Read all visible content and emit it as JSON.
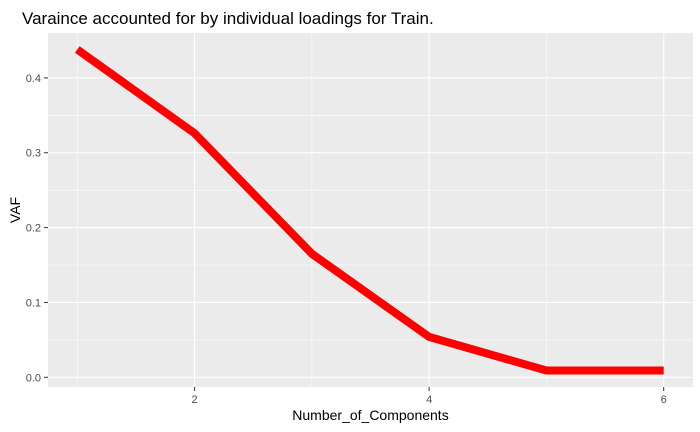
{
  "chart_data": {
    "type": "line",
    "title": "Varaince accounted for by individual loadings for Train.",
    "xlabel": "Number_of_Components",
    "ylabel": "VAF",
    "x": [
      1,
      2,
      3,
      4,
      5,
      6
    ],
    "series": [
      {
        "values": [
          0.438,
          0.326,
          0.165,
          0.054,
          0.009,
          0.009
        ]
      }
    ],
    "xlim": [
      0.75,
      6.25
    ],
    "ylim": [
      -0.013,
      0.46
    ],
    "xticks": [
      2,
      4,
      6
    ],
    "xtick_labels": [
      "2",
      "4",
      "6"
    ],
    "yticks": [
      0.0,
      0.1,
      0.2,
      0.3,
      0.4
    ],
    "ytick_labels": [
      "0.0",
      "0.1",
      "0.2",
      "0.3",
      "0.4"
    ],
    "grid": true,
    "colors": {
      "line": "#ff0000",
      "panel": "#ebebeb",
      "grid_major": "#ffffff"
    }
  }
}
